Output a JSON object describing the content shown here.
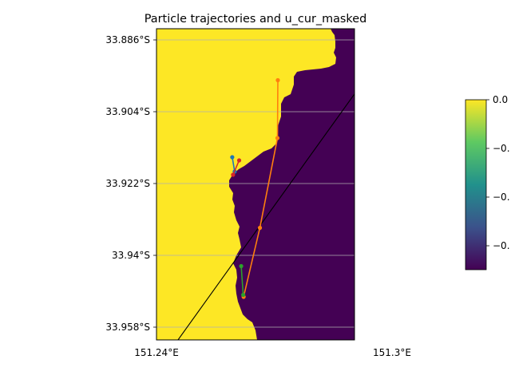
{
  "chart_data": {
    "type": "scatter",
    "title": "Particle trajectories and u_cur_masked",
    "xlabel": "",
    "ylabel": "",
    "x_tick_labels": [
      "151.24°E",
      "151.3°E"
    ],
    "y_tick_labels": [
      "33.886°S",
      "33.904°S",
      "33.922°S",
      "33.94°S",
      "33.958°S"
    ],
    "grid": "horizontal",
    "colorbar": {
      "tick_labels": [
        "0.0",
        "−0.",
        "−0.",
        "−0."
      ],
      "colormap": "viridis"
    },
    "map_colors": {
      "masked": "#fde725",
      "water": "#440154",
      "axes_edge": "#000000"
    },
    "series": [
      {
        "color": "#1f77b4",
        "points": [
          [
            151.2586,
            -33.9154
          ],
          [
            151.2592,
            -33.919
          ]
        ]
      },
      {
        "color": "#ff7f0e",
        "points": [
          [
            151.2698,
            -33.8961
          ],
          [
            151.2697,
            -33.9106
          ],
          [
            151.2654,
            -33.9331
          ],
          [
            151.2614,
            -33.9504
          ]
        ]
      },
      {
        "color": "#2ca02c",
        "points": [
          [
            151.2608,
            -33.9427
          ],
          [
            151.2613,
            -33.9499
          ]
        ]
      },
      {
        "color": "#d62728",
        "points": [
          [
            151.2588,
            -33.9198
          ],
          [
            151.2603,
            -33.9162
          ]
        ]
      }
    ],
    "ref_line": [
      [
        151.245,
        -33.9616
      ],
      [
        151.29,
        -33.8976
      ]
    ]
  }
}
